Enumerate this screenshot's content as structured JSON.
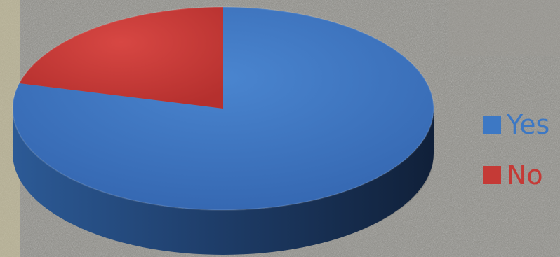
{
  "chart_data": {
    "type": "pie",
    "three_d": true,
    "categories": [
      "Yes",
      "No"
    ],
    "values": [
      79,
      21
    ],
    "colors": [
      "#3D78C4",
      "#C53A36"
    ],
    "legend": {
      "placement": "right",
      "entries": [
        {
          "label": "Yes",
          "color": "#3D78C4"
        },
        {
          "label": "No",
          "color": "#C53A36"
        }
      ]
    },
    "title": ""
  },
  "background": {
    "description_color": "#8b8b85",
    "accent_left": "#cfc69c"
  }
}
